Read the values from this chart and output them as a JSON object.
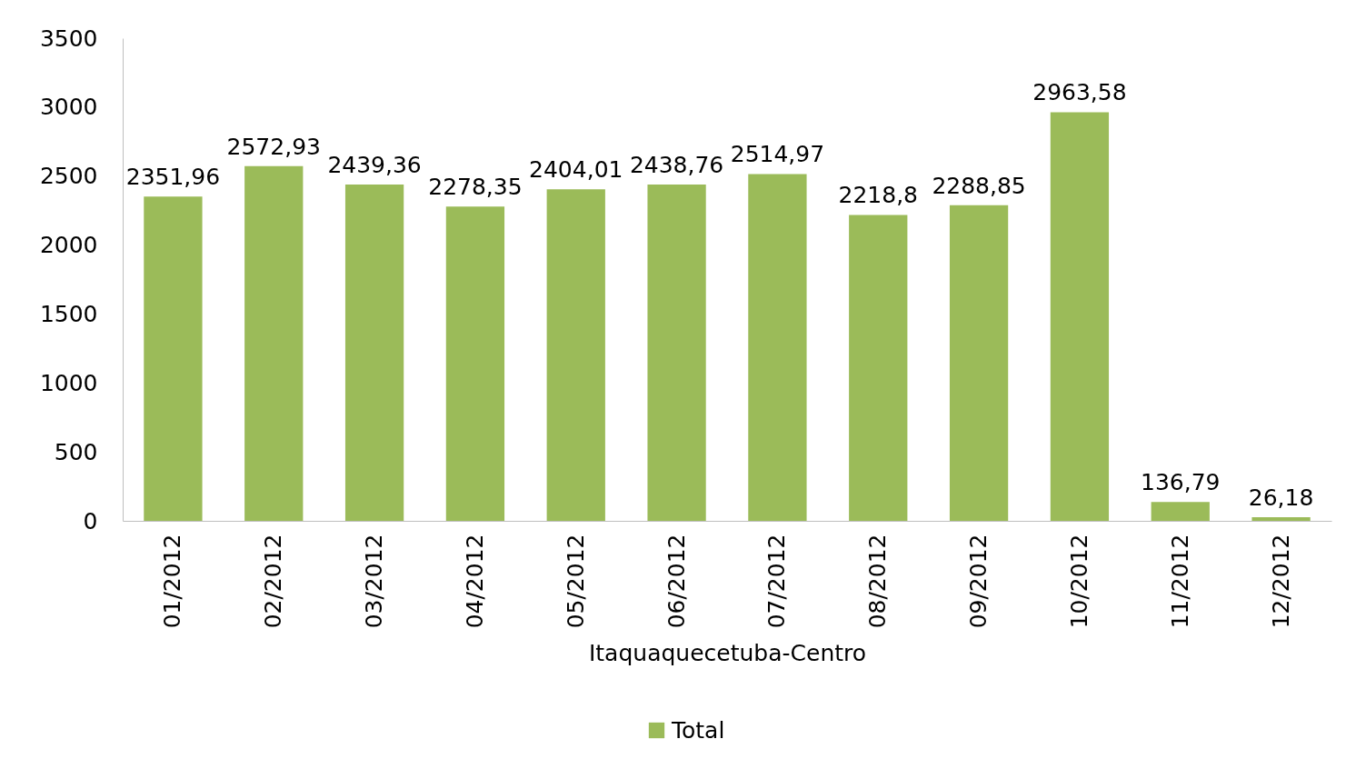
{
  "chart_data": {
    "type": "bar",
    "xlabel": "Itaquaquecetuba-Centro",
    "categories": [
      "01/2012",
      "02/2012",
      "03/2012",
      "04/2012",
      "05/2012",
      "06/2012",
      "07/2012",
      "08/2012",
      "09/2012",
      "10/2012",
      "11/2012",
      "12/2012"
    ],
    "series": [
      {
        "name": "Total",
        "color": "#9bbb59",
        "values": [
          2351.96,
          2572.93,
          2439.36,
          2278.35,
          2404.01,
          2438.76,
          2514.97,
          2218.8,
          2288.85,
          2963.58,
          136.79,
          26.18
        ],
        "value_labels": [
          "2351,96",
          "2572,93",
          "2439,36",
          "2278,35",
          "2404,01",
          "2438,76",
          "2514,97",
          "2218,8",
          "2288,85",
          "2963,58",
          "136,79",
          "26,18"
        ]
      }
    ],
    "ylim": [
      0,
      3500
    ],
    "yticks": [
      0,
      500,
      1000,
      1500,
      2000,
      2500,
      3000,
      3500
    ],
    "grid": false,
    "legend": "bottom"
  }
}
